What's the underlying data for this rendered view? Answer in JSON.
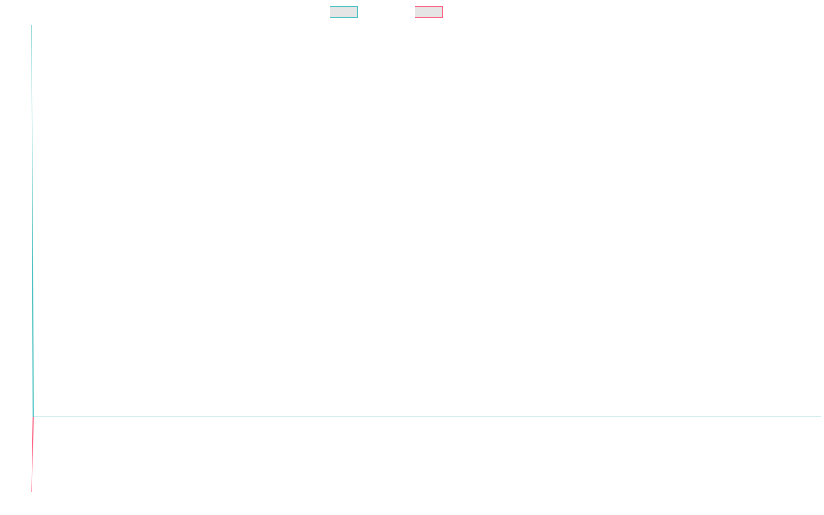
{
  "chart_data": {
    "type": "line",
    "title": "",
    "xlabel": "",
    "ylabel": "",
    "legend_position": "top-center",
    "grid": false,
    "series": [
      {
        "name": "",
        "border_color": "#4bc0c0",
        "fill_color": "#e5e5e5",
        "points": [
          [
            0,
            1.0
          ],
          [
            0.002,
            0.0
          ],
          [
            1,
            0.0
          ]
        ]
      },
      {
        "name": "",
        "border_color": "#ff6384",
        "fill_color": "#e5e5e5",
        "points": [
          [
            0,
            -0.19
          ],
          [
            0.002,
            0.0
          ]
        ]
      }
    ],
    "xlim": [
      0,
      1
    ],
    "ylim": [
      -0.19,
      1.0
    ]
  }
}
